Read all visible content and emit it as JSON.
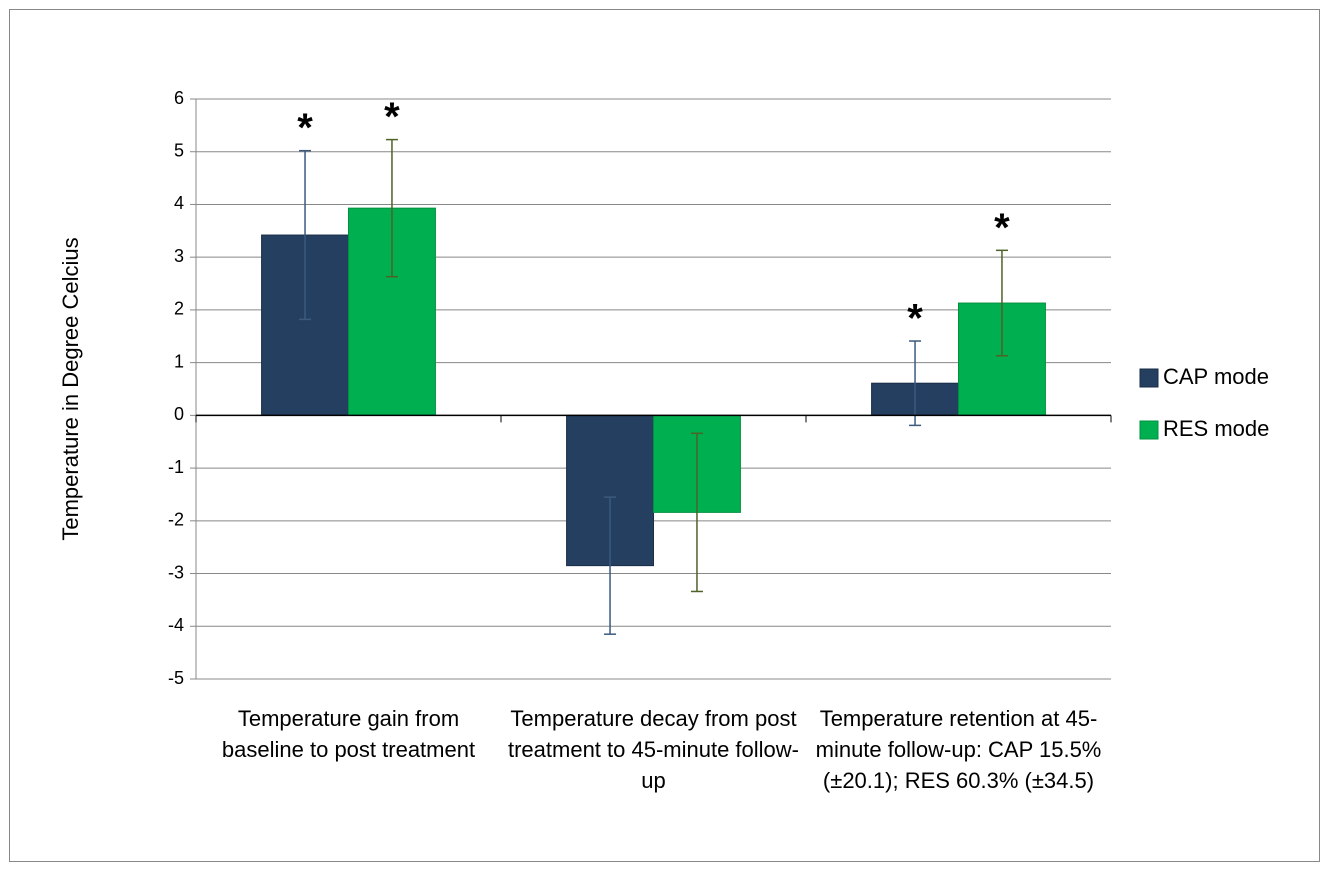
{
  "chart_data": {
    "type": "bar",
    "y_label": "Temperature in Degree Celcius",
    "categories": [
      "Temperature gain from baseline to post treatment",
      "Temperature decay from post treatment to 45-minute follow-up",
      "Temperature retention at 45-minute follow-up: CAP 15.5% (±20.1); RES 60.3% (±34.5)"
    ],
    "series": [
      {
        "name": "CAP mode",
        "color": "#243f60",
        "error_color": "#3b5a7e",
        "values": [
          3.42,
          -2.85,
          0.61
        ],
        "errors": [
          1.6,
          1.3,
          0.8
        ],
        "annotations": [
          "*",
          null,
          "*"
        ]
      },
      {
        "name": "RES mode",
        "color": "#00b050",
        "error_color": "#4f6228",
        "values": [
          3.93,
          -1.84,
          2.13
        ],
        "errors": [
          1.3,
          1.5,
          1.0
        ],
        "annotations": [
          "*",
          null,
          "*"
        ]
      }
    ],
    "ylim": [
      -5,
      6
    ],
    "yticks": [
      -5,
      -4,
      -3,
      -2,
      -1,
      0,
      1,
      2,
      3,
      4,
      5,
      6
    ],
    "grid": true,
    "legend": "right"
  }
}
